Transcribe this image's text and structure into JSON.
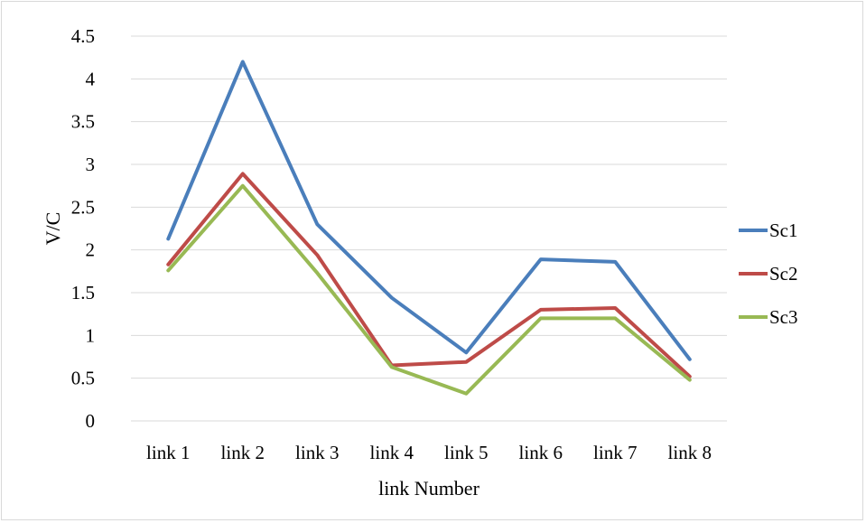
{
  "chart_data": {
    "type": "line",
    "title": "",
    "xlabel": "link Number",
    "ylabel": "V/C",
    "categories": [
      "link 1",
      "link 2",
      "link 3",
      "link 4",
      "link 5",
      "link 6",
      "link 7",
      "link 8"
    ],
    "ylim": [
      0,
      4.5
    ],
    "yticks": [
      "0",
      "0.5",
      "1",
      "1.5",
      "2",
      "2.5",
      "3",
      "3.5",
      "4",
      "4.5"
    ],
    "grid": true,
    "legend_position": "right",
    "series": [
      {
        "name": "Sc1",
        "color": "#4a7ebb",
        "values": [
          2.13,
          4.2,
          2.3,
          1.44,
          0.8,
          1.89,
          1.86,
          0.72
        ]
      },
      {
        "name": "Sc2",
        "color": "#be4b48",
        "values": [
          1.83,
          2.89,
          1.94,
          0.65,
          0.69,
          1.3,
          1.32,
          0.52
        ]
      },
      {
        "name": "Sc3",
        "color": "#98b954",
        "values": [
          1.76,
          2.75,
          1.73,
          0.63,
          0.32,
          1.2,
          1.2,
          0.48
        ]
      }
    ]
  }
}
